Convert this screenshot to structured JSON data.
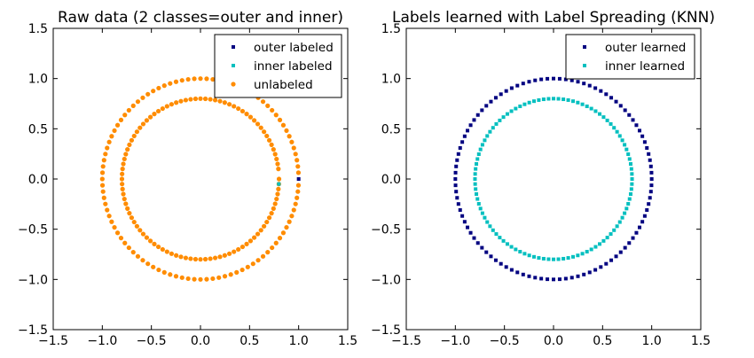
{
  "chart_data": [
    {
      "type": "scatter",
      "title": "Raw data (2 classes=outer and inner)",
      "xlim": [
        -1.5,
        1.5
      ],
      "ylim": [
        -1.5,
        1.5
      ],
      "xticks": [
        "−1.5",
        "−1.0",
        "−0.5",
        "0.0",
        "0.5",
        "1.0",
        "1.5"
      ],
      "yticks": [
        "−1.5",
        "−1.0",
        "−0.5",
        "0.0",
        "0.5",
        "1.0",
        "1.5"
      ],
      "legend_position": "top-right",
      "rings": {
        "outer_radius": 1.0,
        "inner_radius": 0.8,
        "points_per_ring": 100
      },
      "series": [
        {
          "name": "outer labeled",
          "color": "#000080",
          "marker": "square",
          "points": [
            [
              1.0,
              0.0
            ]
          ]
        },
        {
          "name": "inner labeled",
          "color": "#00bfbf",
          "marker": "square",
          "points": [
            [
              0.798,
              -0.05
            ]
          ]
        },
        {
          "name": "unlabeled",
          "color": "#ff8c00",
          "marker": "circle",
          "points": "all remaining ring points (198)"
        }
      ]
    },
    {
      "type": "scatter",
      "title": "Labels learned with Label Spreading (KNN)",
      "xlim": [
        -1.5,
        1.5
      ],
      "ylim": [
        -1.5,
        1.5
      ],
      "xticks": [
        "−1.5",
        "−1.0",
        "−0.5",
        "0.0",
        "0.5",
        "1.0",
        "1.5"
      ],
      "yticks": [
        "−1.5",
        "−1.0",
        "−0.5",
        "0.0",
        "0.5",
        "1.0",
        "1.5"
      ],
      "legend_position": "top-right",
      "series": [
        {
          "name": "outer learned",
          "color": "#000080",
          "marker": "square",
          "points": "outer ring, radius 1.0, 100 points"
        },
        {
          "name": "inner learned",
          "color": "#00bfbf",
          "marker": "square",
          "points": "inner ring, radius 0.8, 100 points"
        }
      ]
    }
  ]
}
